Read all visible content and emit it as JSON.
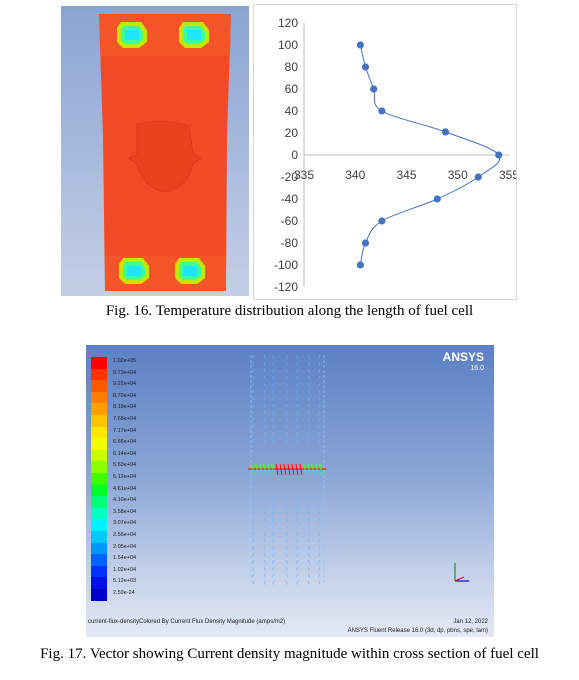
{
  "fig16": {
    "caption": "Fig. 16. Temperature distribution along the length of fuel cell"
  },
  "chart_data": {
    "type": "line",
    "title": "",
    "xlabel": "",
    "ylabel": "",
    "xlim": [
      335,
      355
    ],
    "ylim": [
      -120,
      120
    ],
    "x_ticks": [
      "335",
      "340",
      "345",
      "350",
      "355"
    ],
    "y_ticks": [
      "120",
      "100",
      "80",
      "60",
      "40",
      "20",
      "0",
      "-20",
      "-40",
      "-60",
      "-80",
      "-100",
      "-120"
    ],
    "series": [
      {
        "x": [
          340.5,
          341.0,
          341.8,
          342.6,
          348.8,
          354.0,
          352.0,
          348.0,
          342.6,
          341.0,
          340.5
        ],
        "y": [
          100,
          80,
          60,
          40,
          21,
          0,
          -20,
          -40,
          -60,
          -80,
          -100
        ]
      }
    ],
    "line_color": "#4472c4",
    "marker_color": "#4472c4",
    "grid": false
  },
  "fig17": {
    "caption": "Fig. 17. Vector showing Current density magnitude within cross section of fuel cell",
    "legend": [
      "1.02e+05",
      "9.73e+04",
      "9.22e+04",
      "8.70e+04",
      "8.19e+04",
      "7.68e+04",
      "7.17e+04",
      "6.66e+04",
      "6.14e+04",
      "5.63e+04",
      "5.12e+04",
      "4.61e+04",
      "4.10e+04",
      "3.58e+04",
      "3.07e+04",
      "2.56e+04",
      "2.05e+04",
      "1.54e+04",
      "1.02e+04",
      "5.12e+03",
      "2.59e-24"
    ],
    "legend_colors": [
      "#ff0000",
      "#ff3300",
      "#ff5a00",
      "#ff7d00",
      "#ffa000",
      "#ffc400",
      "#ffe600",
      "#f2ff00",
      "#c8ff00",
      "#8cff00",
      "#3cff00",
      "#00ff28",
      "#00ff78",
      "#00ffc0",
      "#00f0ff",
      "#00c8ff",
      "#0096ff",
      "#0064ff",
      "#0032ff",
      "#0010e6",
      "#0000c8"
    ],
    "logo": "ANSYS",
    "version": "16.0",
    "footer_left": "current-flux-densityColored By Current Flux Density Magnitude (amps/m2)",
    "footer_date": "Jan 12, 2022",
    "footer_right": "ANSYS Fluent Release 16.0 (3d, dp, pbns, spe, lam)"
  }
}
